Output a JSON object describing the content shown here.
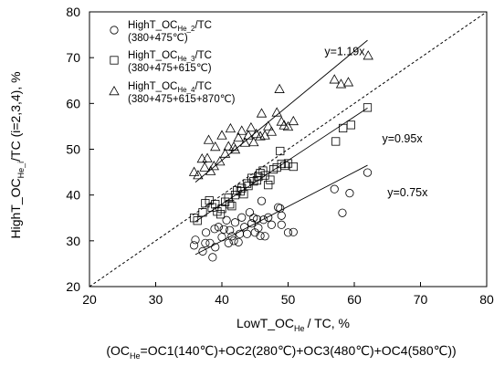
{
  "chart_data": {
    "type": "scatter",
    "x_axis": {
      "min": 20,
      "max": 80,
      "ticks": [
        20,
        30,
        40,
        50,
        60,
        70,
        80
      ],
      "label_main": "LowT_OC",
      "label_sub": "He",
      "label_tail": "/ TC, %",
      "note_pre": "(OC",
      "note_sub": "He",
      "note_post": "=OC1(140℃)+OC2(280℃)+OC3(480℃)+OC4(580℃))"
    },
    "y_axis": {
      "min": 20,
      "max": 80,
      "ticks": [
        20,
        30,
        40,
        50,
        60,
        70,
        80
      ],
      "label_main": "HighT_OC",
      "label_sub": "He_i",
      "label_tail": "/TC (i=2,3,4), %"
    },
    "grid": false,
    "legend_position": "top-left",
    "reference_line": {
      "style": "dashed",
      "from": [
        20,
        20
      ],
      "to": [
        80,
        80
      ]
    },
    "series": [
      {
        "marker": "circle",
        "legend_pre": "HighT_OC",
        "legend_sub": "He_2",
        "legend_post": "/TC",
        "legend_note": "(380+475℃)",
        "fit_label": "y=0.75x",
        "fit_slope": 0.75,
        "fit_line": [
          [
            36,
            27
          ],
          [
            62,
            46.5
          ]
        ],
        "fit_label_at": [
          65,
          40.5
        ],
        "points": [
          [
            35.8,
            29
          ],
          [
            36.0,
            30.2
          ],
          [
            37.1,
            27.7
          ],
          [
            37.5,
            29.5
          ],
          [
            37.6,
            31.8
          ],
          [
            38.2,
            29.5
          ],
          [
            38.6,
            26.4
          ],
          [
            38.9,
            32.6
          ],
          [
            39.0,
            28.6
          ],
          [
            39.5,
            33.0
          ],
          [
            40.0,
            30.8
          ],
          [
            40.3,
            32.5
          ],
          [
            40.7,
            34.5
          ],
          [
            41.0,
            29.5
          ],
          [
            41.2,
            32.3
          ],
          [
            41.5,
            31.0
          ],
          [
            41.8,
            30.0
          ],
          [
            42.0,
            34.0
          ],
          [
            42.5,
            29.7
          ],
          [
            42.7,
            31.5
          ],
          [
            43.0,
            35.1
          ],
          [
            43.4,
            33.0
          ],
          [
            43.8,
            31.5
          ],
          [
            44.2,
            36.2
          ],
          [
            44.5,
            33.8
          ],
          [
            44.8,
            35.0
          ],
          [
            45.0,
            31.8
          ],
          [
            45.3,
            34.7
          ],
          [
            45.5,
            32.8
          ],
          [
            45.8,
            31.1
          ],
          [
            46.0,
            38.7
          ],
          [
            46.3,
            34.6
          ],
          [
            46.5,
            31.0
          ],
          [
            47.0,
            35.1
          ],
          [
            47.5,
            33.5
          ],
          [
            48.5,
            37.3
          ],
          [
            48.8,
            37.1
          ],
          [
            49.0,
            35.5
          ],
          [
            49.0,
            33.5
          ],
          [
            50.0,
            31.8
          ],
          [
            50.8,
            31.9
          ],
          [
            57.0,
            41.3
          ],
          [
            58.2,
            36.1
          ],
          [
            59.3,
            40.4
          ],
          [
            62.0,
            44.9
          ]
        ]
      },
      {
        "marker": "square",
        "legend_pre": "HighT_OC",
        "legend_sub": "He_3",
        "legend_post": "/TC",
        "legend_note": "(380+475+615℃)",
        "fit_label": "y=0.95x",
        "fit_slope": 0.95,
        "fit_line": [
          [
            36,
            34.2
          ],
          [
            62,
            59
          ]
        ],
        "fit_label_at": [
          64.2,
          52.3
        ],
        "points": [
          [
            35.8,
            35.0
          ],
          [
            36.3,
            34.4
          ],
          [
            37.1,
            36.2
          ],
          [
            37.5,
            38.2
          ],
          [
            38.1,
            38.8
          ],
          [
            38.5,
            37.3
          ],
          [
            39.0,
            38.0
          ],
          [
            39.3,
            36.4
          ],
          [
            39.8,
            35.8
          ],
          [
            40.0,
            37.0
          ],
          [
            40.5,
            38.5
          ],
          [
            41.0,
            39.4
          ],
          [
            41.2,
            38.0
          ],
          [
            41.5,
            37.6
          ],
          [
            42.0,
            40.0
          ],
          [
            42.3,
            41.0
          ],
          [
            42.8,
            40.8
          ],
          [
            43.0,
            41.5
          ],
          [
            43.3,
            40.2
          ],
          [
            43.8,
            42.5
          ],
          [
            44.0,
            42.0
          ],
          [
            44.5,
            43.7
          ],
          [
            44.8,
            43.0
          ],
          [
            45.3,
            43.2
          ],
          [
            45.5,
            44.0
          ],
          [
            45.8,
            44.8
          ],
          [
            46.2,
            45.3
          ],
          [
            46.5,
            44.3
          ],
          [
            47.0,
            42.2
          ],
          [
            47.3,
            43.3
          ],
          [
            47.8,
            45.6
          ],
          [
            48.3,
            46.0
          ],
          [
            48.8,
            49.6
          ],
          [
            49.0,
            46.8
          ],
          [
            49.5,
            46.4
          ],
          [
            50.0,
            46.9
          ],
          [
            50.8,
            46.2
          ],
          [
            57.2,
            51.7
          ],
          [
            58.3,
            54.6
          ],
          [
            59.5,
            55.3
          ],
          [
            62.0,
            59.1
          ]
        ]
      },
      {
        "marker": "triangle",
        "legend_pre": "HighT_OC",
        "legend_sub": "He_4",
        "legend_post": "/TC",
        "legend_note": "(380+475+615+870℃)",
        "fit_label": "y=1.19x",
        "fit_slope": 1.19,
        "fit_line": [
          [
            36,
            42.8
          ],
          [
            62,
            73.8
          ]
        ],
        "fit_label_at": [
          55.5,
          71.3
        ],
        "points": [
          [
            35.8,
            45.0
          ],
          [
            36.4,
            44.3
          ],
          [
            37.0,
            47.9
          ],
          [
            37.4,
            46.0
          ],
          [
            37.8,
            48.0
          ],
          [
            38.0,
            52.0
          ],
          [
            38.3,
            45.2
          ],
          [
            38.8,
            46.3
          ],
          [
            39.0,
            50.5
          ],
          [
            39.7,
            47.3
          ],
          [
            40.0,
            53.0
          ],
          [
            40.5,
            49.0
          ],
          [
            41.0,
            50.6
          ],
          [
            41.3,
            54.5
          ],
          [
            41.8,
            50.5
          ],
          [
            42.0,
            49.9
          ],
          [
            42.5,
            52.5
          ],
          [
            43.0,
            54.0
          ],
          [
            43.5,
            51.4
          ],
          [
            44.0,
            53.0
          ],
          [
            44.4,
            54.7
          ],
          [
            44.8,
            51.5
          ],
          [
            45.2,
            53.3
          ],
          [
            45.8,
            52.8
          ],
          [
            46.0,
            57.8
          ],
          [
            46.5,
            53.0
          ],
          [
            47.0,
            55.0
          ],
          [
            47.5,
            53.8
          ],
          [
            48.3,
            58.0
          ],
          [
            48.7,
            63.1
          ],
          [
            49.0,
            56.0
          ],
          [
            49.4,
            55.2
          ],
          [
            50.0,
            54.9
          ],
          [
            50.8,
            56.1
          ],
          [
            57.0,
            65.2
          ],
          [
            58.0,
            64.2
          ],
          [
            59.1,
            64.6
          ],
          [
            62.1,
            70.4
          ]
        ]
      }
    ]
  }
}
